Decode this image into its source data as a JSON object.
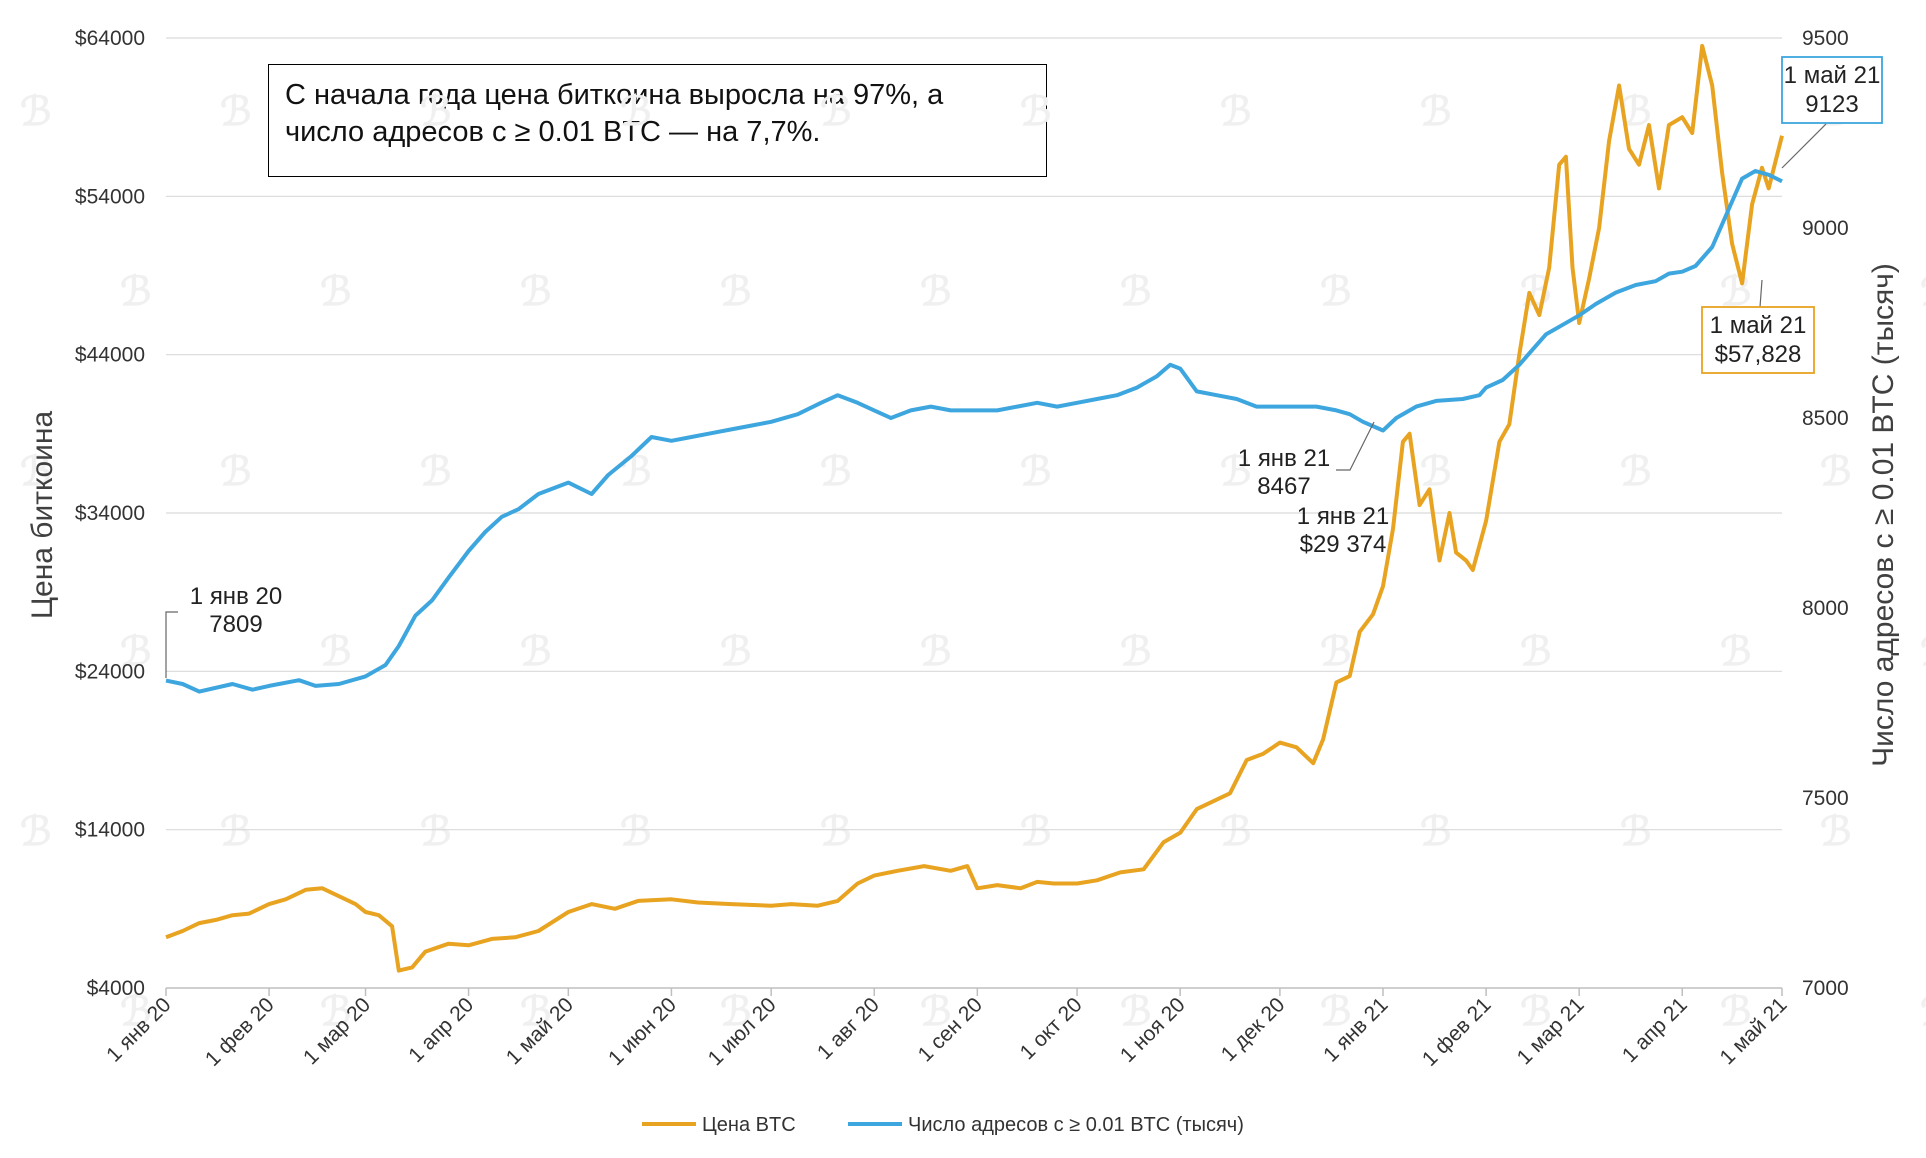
{
  "note": "С начала года цена биткоина выросла на 97%, а число адресов с ≥ 0.01 BTC — на 7,7%.",
  "colors": {
    "price": "#E8A321",
    "addresses": "#3EA6DE",
    "grid": "#d9d9d9"
  },
  "chart_data": {
    "type": "line",
    "y_left_label": "Цена биткоина",
    "y_right_label": "Число адресов с ≥ 0.01 BTC (тысяч)",
    "y_left_range": [
      4000,
      64000
    ],
    "y_left_ticks": [
      "$64000",
      "$54000",
      "$44000",
      "$34000",
      "$24000",
      "$14000",
      "$4000"
    ],
    "y_right_range": [
      7000,
      9500
    ],
    "y_right_ticks": [
      "9500",
      "9000",
      "8500",
      "8000",
      "7500",
      "7000"
    ],
    "x_ticks": [
      "1 янв 20",
      "1 фев 20",
      "1 мар 20",
      "1 апр 20",
      "1 май 20",
      "1 июн 20",
      "1 июл 20",
      "1 авг 20",
      "1 сен 20",
      "1 окт 20",
      "1 ноя 20",
      "1 дек 20",
      "1 янв 21",
      "1 фев 21",
      "1 мар 21",
      "1 апр 21",
      "1 май 21"
    ],
    "x_tick_days": [
      0,
      31,
      60,
      91,
      121,
      152,
      182,
      213,
      244,
      274,
      305,
      335,
      366,
      397,
      425,
      456,
      486
    ],
    "series": [
      {
        "name": "Цена BTC",
        "axis": "left",
        "points": [
          [
            0,
            7200
          ],
          [
            5,
            7600
          ],
          [
            10,
            8100
          ],
          [
            15,
            8300
          ],
          [
            20,
            8600
          ],
          [
            25,
            8700
          ],
          [
            31,
            9300
          ],
          [
            36,
            9600
          ],
          [
            42,
            10200
          ],
          [
            47,
            10300
          ],
          [
            52,
            9800
          ],
          [
            57,
            9300
          ],
          [
            60,
            8800
          ],
          [
            64,
            8600
          ],
          [
            68,
            7900
          ],
          [
            70,
            5100
          ],
          [
            74,
            5300
          ],
          [
            78,
            6300
          ],
          [
            85,
            6800
          ],
          [
            91,
            6700
          ],
          [
            98,
            7100
          ],
          [
            105,
            7200
          ],
          [
            112,
            7600
          ],
          [
            121,
            8800
          ],
          [
            128,
            9300
          ],
          [
            135,
            9000
          ],
          [
            142,
            9500
          ],
          [
            152,
            9600
          ],
          [
            160,
            9400
          ],
          [
            170,
            9300
          ],
          [
            182,
            9200
          ],
          [
            188,
            9300
          ],
          [
            196,
            9200
          ],
          [
            202,
            9500
          ],
          [
            208,
            10600
          ],
          [
            213,
            11100
          ],
          [
            220,
            11400
          ],
          [
            228,
            11700
          ],
          [
            236,
            11400
          ],
          [
            241,
            11700
          ],
          [
            244,
            10300
          ],
          [
            250,
            10500
          ],
          [
            257,
            10300
          ],
          [
            262,
            10700
          ],
          [
            267,
            10600
          ],
          [
            274,
            10600
          ],
          [
            280,
            10800
          ],
          [
            287,
            11300
          ],
          [
            294,
            11500
          ],
          [
            300,
            13200
          ],
          [
            305,
            13800
          ],
          [
            310,
            15300
          ],
          [
            315,
            15800
          ],
          [
            320,
            16300
          ],
          [
            325,
            18400
          ],
          [
            330,
            18800
          ],
          [
            335,
            19500
          ],
          [
            340,
            19200
          ],
          [
            345,
            18200
          ],
          [
            348,
            19700
          ],
          [
            352,
            23300
          ],
          [
            356,
            23700
          ],
          [
            359,
            26500
          ],
          [
            363,
            27600
          ],
          [
            366,
            29374
          ],
          [
            369,
            33000
          ],
          [
            372,
            38500
          ],
          [
            374,
            39000
          ],
          [
            377,
            34500
          ],
          [
            380,
            35500
          ],
          [
            383,
            31000
          ],
          [
            386,
            34000
          ],
          [
            388,
            31500
          ],
          [
            391,
            31000
          ],
          [
            393,
            30400
          ],
          [
            397,
            33500
          ],
          [
            401,
            38500
          ],
          [
            404,
            39600
          ],
          [
            407,
            44000
          ],
          [
            410,
            47900
          ],
          [
            413,
            46500
          ],
          [
            416,
            49500
          ],
          [
            419,
            56000
          ],
          [
            421,
            56500
          ],
          [
            423,
            49500
          ],
          [
            425,
            46000
          ],
          [
            428,
            48800
          ],
          [
            431,
            52000
          ],
          [
            434,
            57500
          ],
          [
            437,
            61000
          ],
          [
            440,
            57000
          ],
          [
            443,
            56000
          ],
          [
            446,
            58500
          ],
          [
            449,
            54500
          ],
          [
            452,
            58500
          ],
          [
            456,
            59000
          ],
          [
            459,
            58000
          ],
          [
            462,
            63500
          ],
          [
            465,
            61000
          ],
          [
            468,
            55500
          ],
          [
            471,
            51000
          ],
          [
            474,
            48500
          ],
          [
            477,
            53500
          ],
          [
            480,
            55800
          ],
          [
            482,
            54500
          ],
          [
            486,
            57828
          ]
        ]
      },
      {
        "name": "Число адресов с ≥ 0.01 BTC (тысяч)",
        "axis": "right",
        "points": [
          [
            0,
            7809
          ],
          [
            5,
            7800
          ],
          [
            10,
            7780
          ],
          [
            20,
            7800
          ],
          [
            26,
            7785
          ],
          [
            31,
            7795
          ],
          [
            40,
            7810
          ],
          [
            45,
            7795
          ],
          [
            52,
            7800
          ],
          [
            60,
            7820
          ],
          [
            66,
            7850
          ],
          [
            70,
            7900
          ],
          [
            75,
            7980
          ],
          [
            80,
            8020
          ],
          [
            85,
            8080
          ],
          [
            91,
            8150
          ],
          [
            96,
            8200
          ],
          [
            101,
            8240
          ],
          [
            106,
            8260
          ],
          [
            112,
            8300
          ],
          [
            118,
            8320
          ],
          [
            121,
            8330
          ],
          [
            128,
            8300
          ],
          [
            133,
            8350
          ],
          [
            140,
            8400
          ],
          [
            146,
            8450
          ],
          [
            152,
            8440
          ],
          [
            158,
            8450
          ],
          [
            164,
            8460
          ],
          [
            170,
            8470
          ],
          [
            176,
            8480
          ],
          [
            182,
            8490
          ],
          [
            190,
            8510
          ],
          [
            197,
            8540
          ],
          [
            202,
            8560
          ],
          [
            208,
            8540
          ],
          [
            213,
            8520
          ],
          [
            218,
            8500
          ],
          [
            224,
            8520
          ],
          [
            230,
            8530
          ],
          [
            236,
            8520
          ],
          [
            240,
            8520
          ],
          [
            244,
            8520
          ],
          [
            250,
            8520
          ],
          [
            256,
            8530
          ],
          [
            262,
            8540
          ],
          [
            268,
            8530
          ],
          [
            274,
            8540
          ],
          [
            280,
            8550
          ],
          [
            286,
            8560
          ],
          [
            292,
            8580
          ],
          [
            298,
            8610
          ],
          [
            302,
            8640
          ],
          [
            305,
            8630
          ],
          [
            310,
            8570
          ],
          [
            316,
            8560
          ],
          [
            322,
            8550
          ],
          [
            328,
            8530
          ],
          [
            335,
            8530
          ],
          [
            340,
            8530
          ],
          [
            346,
            8530
          ],
          [
            352,
            8520
          ],
          [
            356,
            8510
          ],
          [
            360,
            8490
          ],
          [
            366,
            8467
          ],
          [
            370,
            8500
          ],
          [
            376,
            8530
          ],
          [
            382,
            8545
          ],
          [
            390,
            8550
          ],
          [
            395,
            8560
          ],
          [
            397,
            8580
          ],
          [
            402,
            8600
          ],
          [
            407,
            8640
          ],
          [
            411,
            8680
          ],
          [
            415,
            8720
          ],
          [
            419,
            8740
          ],
          [
            423,
            8760
          ],
          [
            425,
            8770
          ],
          [
            430,
            8800
          ],
          [
            436,
            8830
          ],
          [
            442,
            8850
          ],
          [
            448,
            8860
          ],
          [
            452,
            8880
          ],
          [
            456,
            8885
          ],
          [
            460,
            8900
          ],
          [
            465,
            8950
          ],
          [
            470,
            9050
          ],
          [
            474,
            9130
          ],
          [
            478,
            9150
          ],
          [
            482,
            9140
          ],
          [
            486,
            9123
          ]
        ]
      }
    ],
    "annotations": [
      {
        "id": "addr-start",
        "lines": [
          "1 янв 20",
          "7809"
        ]
      },
      {
        "id": "addr-jan21",
        "lines": [
          "1 янв 21",
          "8467"
        ]
      },
      {
        "id": "price-jan21",
        "lines": [
          "1 янв 21",
          "$29 374"
        ]
      },
      {
        "id": "addr-may21",
        "lines": [
          "1 май 21",
          "9123"
        ]
      },
      {
        "id": "price-may21",
        "lines": [
          "1 май 21",
          "$57,828"
        ]
      }
    ],
    "legend": [
      {
        "name": "Цена BTC",
        "color": "#E8A321"
      },
      {
        "name": "Число адресов с ≥ 0.01 BTC (тысяч)",
        "color": "#3EA6DE"
      }
    ]
  }
}
